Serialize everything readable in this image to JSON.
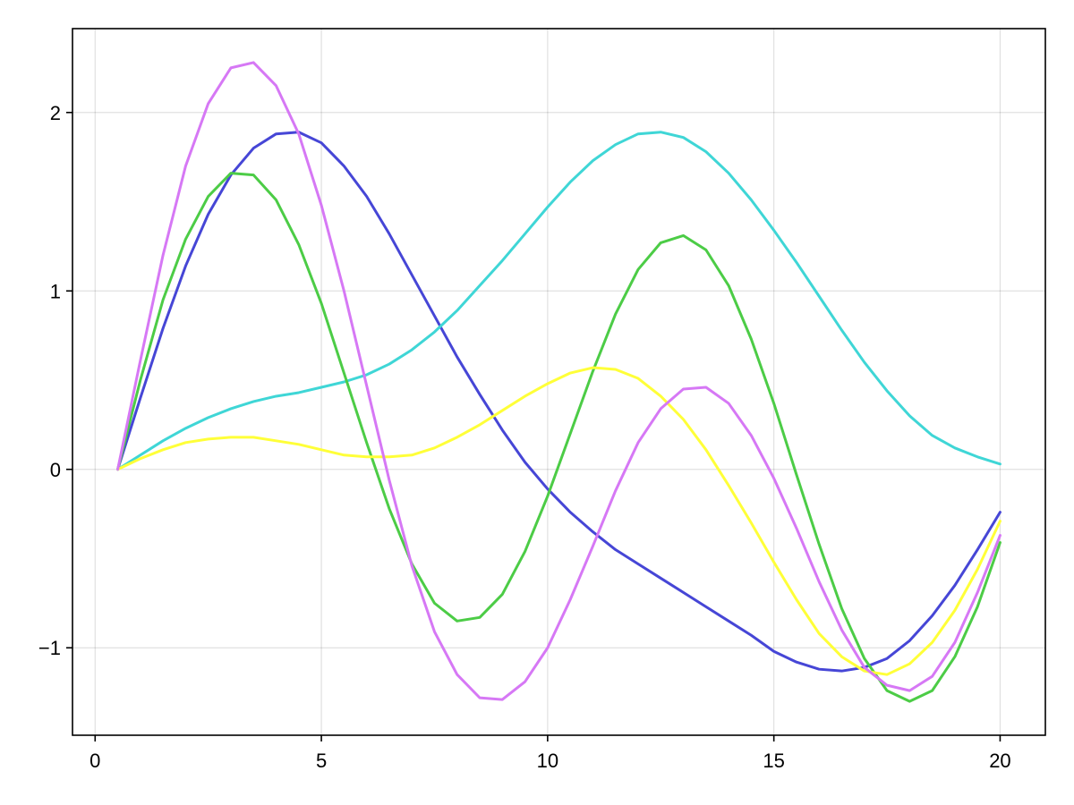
{
  "chart_data": {
    "type": "line",
    "title": "",
    "xlabel": "",
    "ylabel": "",
    "xlim": [
      -0.5,
      21
    ],
    "ylim": [
      -1.49,
      2.47
    ],
    "grid": true,
    "legend": "none",
    "x_ticks": [
      0,
      5,
      10,
      15,
      20
    ],
    "x_tick_labels": [
      "0",
      "5",
      "10",
      "15",
      "20"
    ],
    "y_ticks": [
      -1,
      0,
      1,
      2
    ],
    "y_tick_labels": [
      "−1",
      "0",
      "1",
      "2"
    ],
    "x": [
      0.5,
      1.0,
      1.5,
      2.0,
      2.5,
      3.0,
      3.5,
      4.0,
      4.5,
      5.0,
      5.5,
      6.0,
      6.5,
      7.0,
      7.5,
      8.0,
      8.5,
      9.0,
      9.5,
      10.0,
      10.5,
      11.0,
      11.5,
      12.0,
      12.5,
      13.0,
      13.5,
      14.0,
      14.5,
      15.0,
      15.5,
      16.0,
      16.5,
      17.0,
      17.5,
      18.0,
      18.5,
      19.0,
      19.5,
      20.0
    ],
    "series": [
      {
        "color": "#4646d6",
        "values": [
          0.0,
          0.4,
          0.79,
          1.14,
          1.43,
          1.65,
          1.8,
          1.88,
          1.89,
          1.83,
          1.7,
          1.53,
          1.32,
          1.09,
          0.86,
          0.63,
          0.42,
          0.22,
          0.04,
          -0.11,
          -0.24,
          -0.35,
          -0.45,
          -0.53,
          -0.61,
          -0.69,
          -0.77,
          -0.85,
          -0.93,
          -1.02,
          -1.08,
          -1.12,
          -1.13,
          -1.11,
          -1.06,
          -0.96,
          -0.82,
          -0.65,
          -0.45,
          -0.24
        ]
      },
      {
        "color": "#3fd6d6",
        "values": [
          0.0,
          0.08,
          0.16,
          0.23,
          0.29,
          0.34,
          0.38,
          0.41,
          0.43,
          0.46,
          0.49,
          0.53,
          0.59,
          0.67,
          0.77,
          0.89,
          1.03,
          1.17,
          1.32,
          1.47,
          1.61,
          1.73,
          1.82,
          1.88,
          1.89,
          1.86,
          1.78,
          1.66,
          1.51,
          1.34,
          1.16,
          0.97,
          0.78,
          0.6,
          0.44,
          0.3,
          0.19,
          0.12,
          0.07,
          0.03
        ]
      },
      {
        "color": "#4ccc46",
        "values": [
          0.0,
          0.5,
          0.95,
          1.29,
          1.53,
          1.66,
          1.65,
          1.51,
          1.26,
          0.93,
          0.54,
          0.15,
          -0.22,
          -0.53,
          -0.75,
          -0.85,
          -0.83,
          -0.7,
          -0.46,
          -0.15,
          0.2,
          0.55,
          0.87,
          1.12,
          1.27,
          1.31,
          1.23,
          1.03,
          0.73,
          0.37,
          -0.03,
          -0.42,
          -0.78,
          -1.06,
          -1.24,
          -1.3,
          -1.24,
          -1.05,
          -0.77,
          -0.41
        ]
      },
      {
        "color": "#ffff38",
        "values": [
          0.0,
          0.06,
          0.11,
          0.15,
          0.17,
          0.18,
          0.18,
          0.16,
          0.14,
          0.11,
          0.08,
          0.07,
          0.07,
          0.08,
          0.12,
          0.18,
          0.25,
          0.33,
          0.41,
          0.48,
          0.54,
          0.57,
          0.56,
          0.51,
          0.41,
          0.28,
          0.11,
          -0.09,
          -0.3,
          -0.52,
          -0.73,
          -0.92,
          -1.05,
          -1.13,
          -1.15,
          -1.09,
          -0.97,
          -0.79,
          -0.56,
          -0.29
        ]
      },
      {
        "color": "#d678f5",
        "values": [
          0.0,
          0.61,
          1.2,
          1.7,
          2.05,
          2.25,
          2.28,
          2.15,
          1.88,
          1.48,
          1.0,
          0.47,
          -0.06,
          -0.54,
          -0.91,
          -1.15,
          -1.28,
          -1.29,
          -1.19,
          -1.0,
          -0.73,
          -0.43,
          -0.12,
          0.15,
          0.34,
          0.45,
          0.46,
          0.37,
          0.19,
          -0.05,
          -0.33,
          -0.63,
          -0.9,
          -1.11,
          -1.21,
          -1.24,
          -1.16,
          -0.97,
          -0.69,
          -0.37
        ]
      }
    ]
  }
}
